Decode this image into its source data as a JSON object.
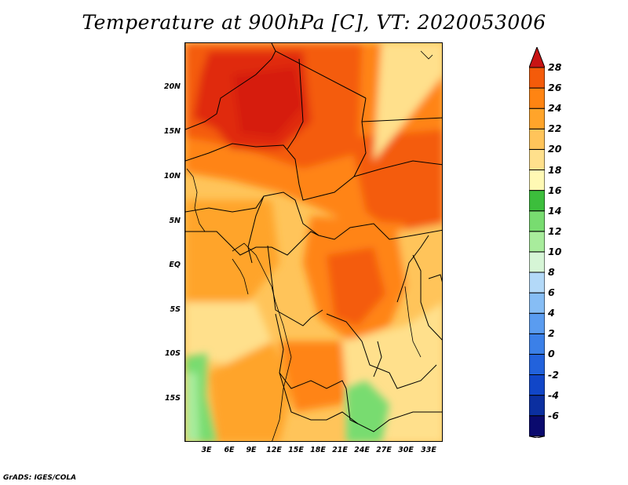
{
  "title": "Temperature at 900hPa [C], VT: 2020053006",
  "credit": "GrADS: IGES/COLA",
  "map": {
    "y_axis_labels": [
      "20N",
      "15N",
      "10N",
      "5N",
      "EQ",
      "5S",
      "10S",
      "15S"
    ],
    "x_axis_labels": [
      "3E",
      "6E",
      "9E",
      "12E",
      "15E",
      "18E",
      "21E",
      "24E",
      "27E",
      "30E",
      "33E"
    ]
  },
  "colorbar": {
    "labels": [
      "28",
      "26",
      "24",
      "22",
      "20",
      "18",
      "16",
      "14",
      "12",
      "10",
      "8",
      "6",
      "4",
      "2",
      "0",
      "-2",
      "-4",
      "-6"
    ],
    "colors": [
      "#e6d8f8",
      "#0a0a6e",
      "#0b2fa0",
      "#1146c8",
      "#2262dc",
      "#3b80e8",
      "#5a9cf0",
      "#86bdf5",
      "#b3d9f8",
      "#d6f5d6",
      "#a8ec9c",
      "#78dc70",
      "#3cbe3c",
      "#fff9b4",
      "#ffe08c",
      "#ffc45a",
      "#ffa42a",
      "#ff8412",
      "#f45b0a",
      "#e02a08",
      "#c81414"
    ]
  }
}
